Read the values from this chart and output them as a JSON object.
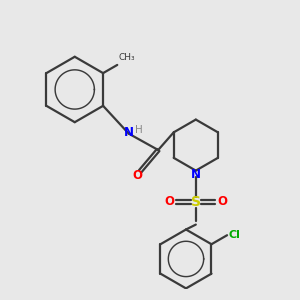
{
  "bg_color": "#e8e8e8",
  "bond_color": "#3a3a3a",
  "atom_colors": {
    "N": "#0000ff",
    "O": "#ff0000",
    "S": "#cccc00",
    "Cl": "#00aa00",
    "H": "#888888",
    "C": "#3a3a3a"
  },
  "lw": 1.6
}
